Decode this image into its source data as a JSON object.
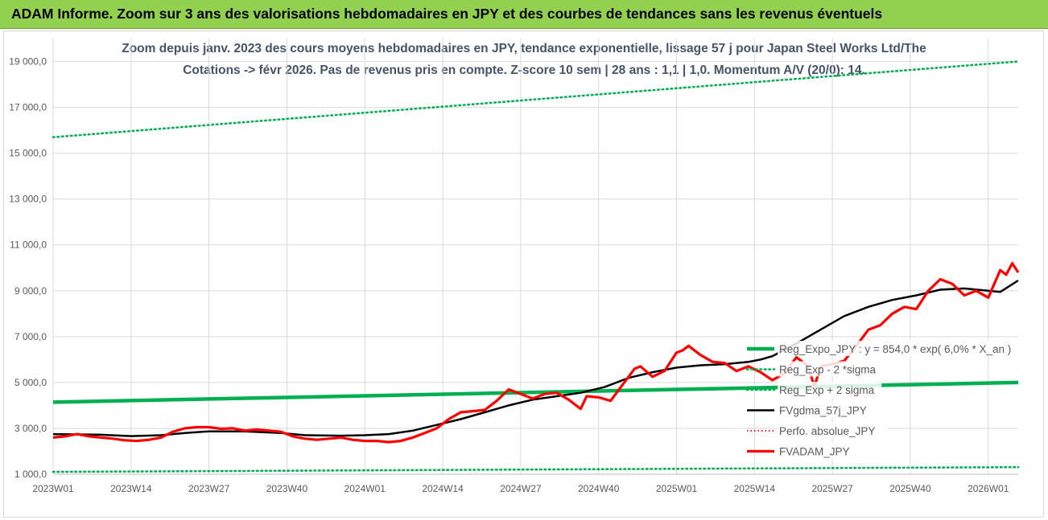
{
  "header": {
    "title": "ADAM Informe. Zoom sur 3 ans des valorisations hebdomadaires en JPY et des courbes de tendances sans les revenus éventuels"
  },
  "colors": {
    "header_bg": "#92d050",
    "reg": "#00b050",
    "fv": "#ff0000",
    "fvgdma": "#000000",
    "perfo": "#ff0000",
    "title": "#44546a"
  },
  "chart_data": {
    "type": "line",
    "title_line1": "Zoom depuis janv. 2023 des cours moyens hebdomadaires en JPY, tendance exponentielle, lissage 57 j pour Japan Steel Works Ltd/The",
    "title_line2": "Cotations -> févr 2026.  Pas de revenus pris en compte. Z-score 10 sem | 28 ans : 1,1 | 1,0. Momentum A/V (20/0): 14.",
    "ylim": [
      1000,
      20000
    ],
    "yticks": [
      1000,
      3000,
      5000,
      7000,
      9000,
      11000,
      13000,
      15000,
      17000,
      19000
    ],
    "ytick_labels": [
      "1 000,0",
      "3 000,0",
      "5 000,0",
      "7 000,0",
      "9 000,0",
      "11 000,0",
      "13 000,0",
      "15 000,0",
      "17 000,0",
      "19 000,0"
    ],
    "x_count": 162,
    "xtick_labels": [
      "2023W01",
      "2023W14",
      "2023W27",
      "2023W40",
      "2024W01",
      "2024W14",
      "2024W27",
      "2024W40",
      "2025W01",
      "2025W14",
      "2025W27",
      "2025W40",
      "2026W01"
    ],
    "xtick_index": [
      0,
      13,
      26,
      39,
      52,
      65,
      78,
      91,
      104,
      117,
      130,
      143,
      156
    ],
    "legend_position": "right",
    "series": [
      {
        "name": "Reg_Expo_JPY : y = 854,0 * exp( 6,0% *  X_an )",
        "style": "reg",
        "values": [
          [
            0,
            4140
          ],
          [
            161,
            5000
          ]
        ]
      },
      {
        "name": "Reg_Exp - 2 *sigma",
        "style": "regdot",
        "values": [
          [
            0,
            1100
          ],
          [
            161,
            1310
          ]
        ]
      },
      {
        "name": "Reg_Exp + 2 sigma",
        "style": "regdot",
        "values": [
          [
            0,
            15700
          ],
          [
            161,
            19000
          ]
        ]
      },
      {
        "name": "FVgdma_57j_JPY",
        "style": "fvgdma",
        "values": [
          [
            0,
            2750
          ],
          [
            8,
            2720
          ],
          [
            13,
            2660
          ],
          [
            18,
            2700
          ],
          [
            22,
            2800
          ],
          [
            26,
            2870
          ],
          [
            32,
            2870
          ],
          [
            38,
            2800
          ],
          [
            42,
            2700
          ],
          [
            48,
            2680
          ],
          [
            52,
            2700
          ],
          [
            56,
            2750
          ],
          [
            60,
            2900
          ],
          [
            64,
            3150
          ],
          [
            68,
            3400
          ],
          [
            72,
            3700
          ],
          [
            76,
            4000
          ],
          [
            80,
            4250
          ],
          [
            84,
            4400
          ],
          [
            88,
            4550
          ],
          [
            92,
            4800
          ],
          [
            96,
            5200
          ],
          [
            100,
            5450
          ],
          [
            104,
            5650
          ],
          [
            108,
            5750
          ],
          [
            112,
            5800
          ],
          [
            116,
            5900
          ],
          [
            118,
            6000
          ],
          [
            120,
            6150
          ],
          [
            124,
            6700
          ],
          [
            128,
            7300
          ],
          [
            132,
            7900
          ],
          [
            136,
            8300
          ],
          [
            140,
            8600
          ],
          [
            144,
            8800
          ],
          [
            148,
            9050
          ],
          [
            152,
            9100
          ],
          [
            156,
            9000
          ],
          [
            158,
            8950
          ],
          [
            161,
            9450
          ]
        ]
      },
      {
        "name": "Perfo. absolue_JPY",
        "style": "perfo",
        "values": []
      },
      {
        "name": "FVADAM_JPY",
        "style": "fv",
        "values": [
          [
            0,
            2600
          ],
          [
            2,
            2650
          ],
          [
            4,
            2750
          ],
          [
            6,
            2650
          ],
          [
            8,
            2600
          ],
          [
            10,
            2550
          ],
          [
            12,
            2480
          ],
          [
            14,
            2450
          ],
          [
            16,
            2500
          ],
          [
            18,
            2600
          ],
          [
            20,
            2850
          ],
          [
            22,
            3000
          ],
          [
            24,
            3050
          ],
          [
            26,
            3050
          ],
          [
            28,
            2980
          ],
          [
            30,
            3000
          ],
          [
            32,
            2900
          ],
          [
            34,
            2950
          ],
          [
            36,
            2900
          ],
          [
            38,
            2850
          ],
          [
            40,
            2650
          ],
          [
            42,
            2550
          ],
          [
            44,
            2500
          ],
          [
            46,
            2550
          ],
          [
            48,
            2600
          ],
          [
            50,
            2500
          ],
          [
            52,
            2450
          ],
          [
            54,
            2450
          ],
          [
            56,
            2400
          ],
          [
            58,
            2450
          ],
          [
            60,
            2600
          ],
          [
            62,
            2800
          ],
          [
            64,
            3000
          ],
          [
            66,
            3400
          ],
          [
            68,
            3700
          ],
          [
            70,
            3750
          ],
          [
            72,
            3800
          ],
          [
            74,
            4200
          ],
          [
            76,
            4700
          ],
          [
            78,
            4500
          ],
          [
            80,
            4300
          ],
          [
            82,
            4500
          ],
          [
            84,
            4550
          ],
          [
            86,
            4250
          ],
          [
            88,
            3850
          ],
          [
            89,
            4400
          ],
          [
            91,
            4350
          ],
          [
            93,
            4200
          ],
          [
            95,
            4900
          ],
          [
            97,
            5600
          ],
          [
            98,
            5700
          ],
          [
            100,
            5250
          ],
          [
            102,
            5500
          ],
          [
            104,
            6300
          ],
          [
            105,
            6400
          ],
          [
            106,
            6600
          ],
          [
            108,
            6200
          ],
          [
            110,
            5900
          ],
          [
            112,
            5850
          ],
          [
            114,
            5500
          ],
          [
            116,
            5700
          ],
          [
            118,
            5450
          ],
          [
            120,
            5100
          ],
          [
            122,
            5400
          ],
          [
            124,
            6100
          ],
          [
            126,
            5700
          ],
          [
            127,
            4800
          ],
          [
            128,
            5700
          ],
          [
            130,
            5800
          ],
          [
            132,
            5950
          ],
          [
            134,
            6600
          ],
          [
            136,
            7300
          ],
          [
            138,
            7500
          ],
          [
            140,
            8000
          ],
          [
            142,
            8300
          ],
          [
            144,
            8200
          ],
          [
            146,
            9000
          ],
          [
            148,
            9500
          ],
          [
            150,
            9300
          ],
          [
            152,
            8800
          ],
          [
            154,
            9000
          ],
          [
            156,
            8700
          ],
          [
            158,
            9900
          ],
          [
            159,
            9700
          ],
          [
            160,
            10200
          ],
          [
            161,
            9800
          ]
        ]
      }
    ]
  }
}
